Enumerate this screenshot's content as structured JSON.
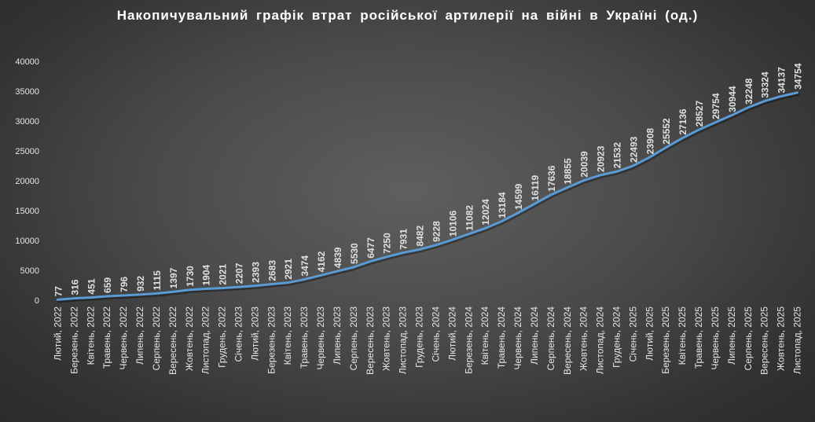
{
  "chart_data": {
    "type": "line",
    "title": "Накопичувальний графік втрат російської артилерії на війні в Україні (од.)",
    "ylim": [
      0,
      40000
    ],
    "yticks": [
      0,
      5000,
      10000,
      15000,
      20000,
      25000,
      30000,
      35000,
      40000
    ],
    "grid": false,
    "legend": "none",
    "line_color": "#5b9bd5",
    "categories": [
      "Лютий, 2022",
      "Березень, 2022",
      "Квітень, 2022",
      "Травень, 2022",
      "Червень, 2022",
      "Липень, 2022",
      "Серпень, 2022",
      "Вересень, 2022",
      "Жовтень, 2022",
      "Листопад, 2022",
      "Грудень, 2022",
      "Січень, 2023",
      "Лютий, 2023",
      "Березень, 2023",
      "Квітень, 2023",
      "Травень, 2023",
      "Червень, 2023",
      "Липень, 2023",
      "Серпень, 2023",
      "Вересень, 2023",
      "Жовтень, 2023",
      "Листопад, 2023",
      "Грудень, 2023",
      "Січень, 2024",
      "Лютий, 2024",
      "Березень, 2024",
      "Квітень, 2024",
      "Травень, 2024",
      "Червень, 2024",
      "Липень, 2024",
      "Серпень, 2024",
      "Вересень, 2024",
      "Жовтень, 2024",
      "Листопад, 2024",
      "Грудень, 2024",
      "Січень, 2025",
      "Лютий, 2025",
      "Березень, 2025",
      "Квітень, 2025",
      "Травень, 2025",
      "Червень, 2025",
      "Липень, 2025",
      "Серпень, 2025",
      "Вересень, 2025",
      "Жовтень, 2025",
      "Листопад, 2025"
    ],
    "series": [
      {
        "values": [
          77,
          316,
          451,
          659,
          796,
          932,
          1115,
          1397,
          1730,
          1904,
          2021,
          2207,
          2393,
          2683,
          2921,
          3474,
          4162,
          4839,
          5530,
          6477,
          7250,
          7931,
          8482,
          9228,
          10106,
          11082,
          12024,
          13184,
          14599,
          16119,
          17636,
          18855,
          20039,
          20923,
          21532,
          22493,
          23908,
          25552,
          27136,
          28527,
          29754,
          30944,
          32248,
          33324,
          34137,
          34754
        ]
      }
    ]
  }
}
